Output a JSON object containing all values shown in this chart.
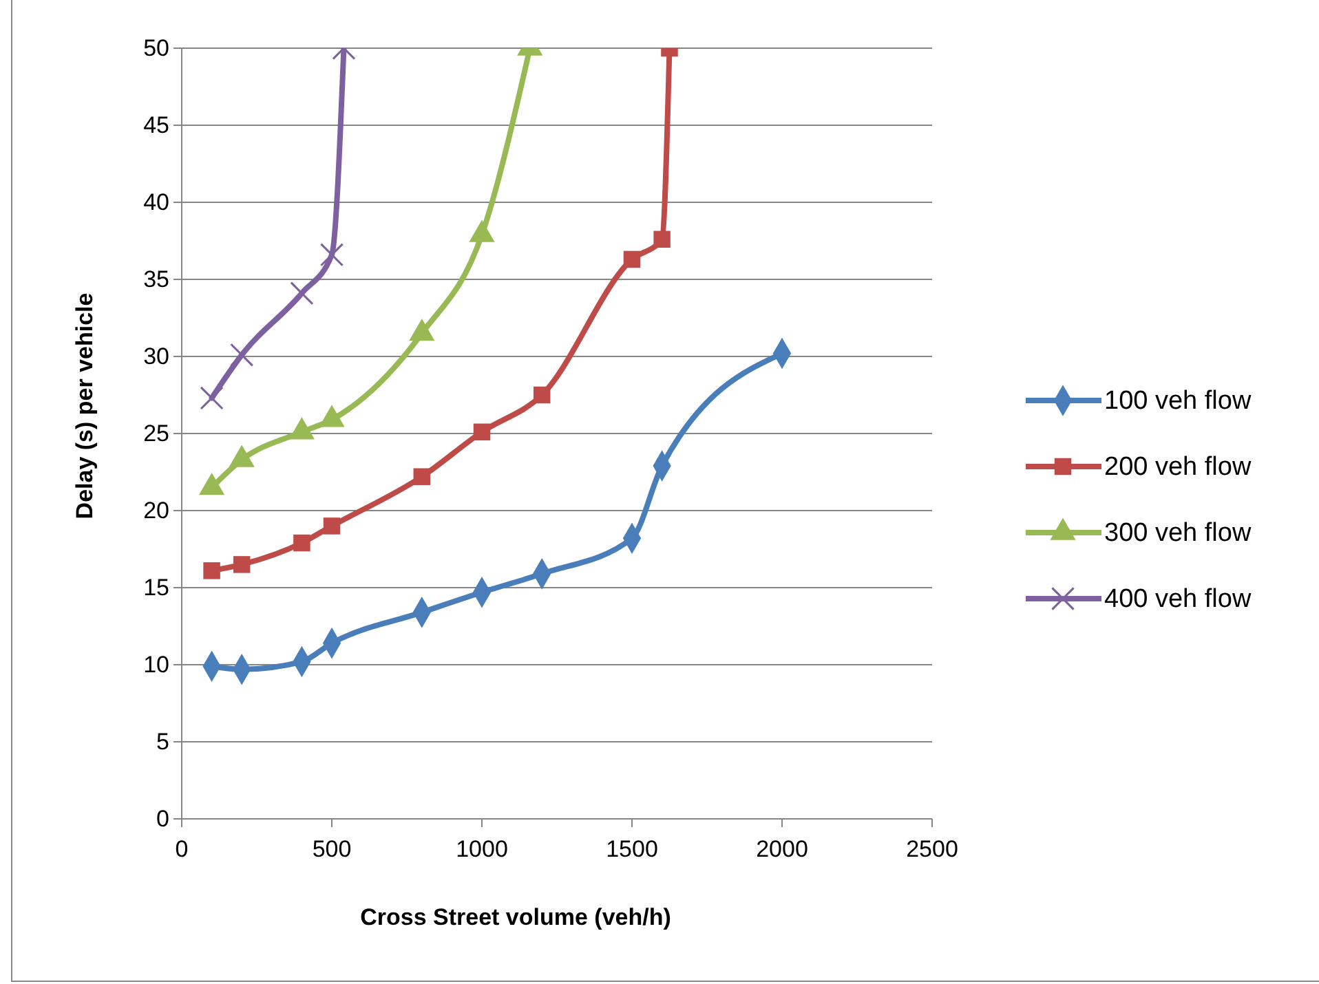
{
  "chart_data": {
    "type": "line",
    "xlabel": "Cross Street volume (veh/h)",
    "ylabel": "Delay (s) per vehicle",
    "xlim": [
      0,
      2500
    ],
    "xticks": [
      0,
      500,
      1000,
      1500,
      2000,
      2500
    ],
    "ylim": [
      0,
      50
    ],
    "yticks": [
      0,
      5,
      10,
      15,
      20,
      25,
      30,
      35,
      40,
      45,
      50
    ],
    "grid": "y",
    "legend": "right",
    "series": [
      {
        "name": "100 veh flow",
        "color": "#4a7ebb",
        "marker": "diamond",
        "x": [
          100,
          200,
          400,
          500,
          800,
          1000,
          1200,
          1500,
          1600,
          2000
        ],
        "values": [
          9.9,
          9.7,
          10.2,
          11.4,
          13.4,
          14.7,
          15.9,
          18.2,
          22.9,
          30.2
        ]
      },
      {
        "name": "200 veh flow",
        "color": "#be4b48",
        "marker": "square",
        "x": [
          100,
          200,
          400,
          500,
          800,
          1000,
          1200,
          1500,
          1600,
          1625
        ],
        "values": [
          16.1,
          16.5,
          17.9,
          19,
          22.2,
          25.1,
          27.5,
          36.3,
          37.6,
          50
        ]
      },
      {
        "name": "300 veh flow",
        "color": "#98b954",
        "marker": "triangle",
        "x": [
          100,
          200,
          400,
          500,
          800,
          1000,
          1160
        ],
        "values": [
          21.5,
          23.3,
          25.1,
          25.9,
          31.5,
          37.9,
          50
        ]
      },
      {
        "name": "400 veh flow",
        "color": "#7d60a0",
        "marker": "cross",
        "x": [
          100,
          200,
          400,
          500,
          540
        ],
        "values": [
          27.3,
          30.1,
          34.1,
          36.6,
          50
        ]
      }
    ]
  }
}
